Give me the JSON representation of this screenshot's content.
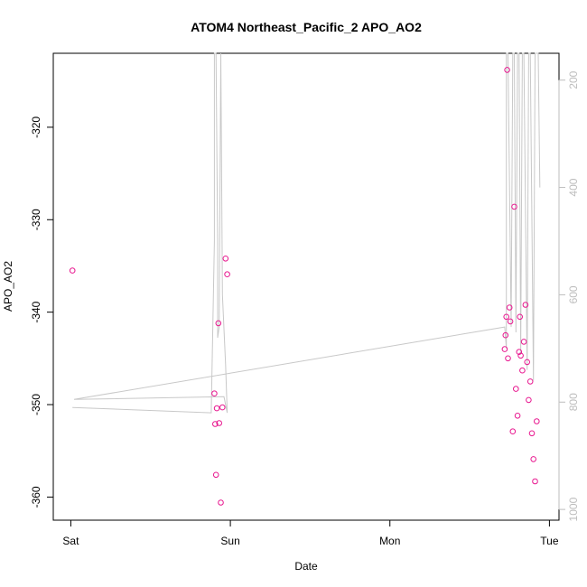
{
  "chart_data": {
    "type": "scatter",
    "title": "ATOM4 Northeast_Pacific_2 APO_AO2",
    "xlabel": "Date",
    "ylabel": "APO_AO2",
    "x_ticks": [
      "Sat",
      "Sun",
      "Mon",
      "Tue"
    ],
    "x_tick_values": [
      0,
      1,
      2,
      3
    ],
    "xlim": [
      -0.11,
      3.06
    ],
    "ylim": [
      -362.5,
      -312
    ],
    "y_ticks": [
      -320,
      -330,
      -340,
      -350,
      -360
    ],
    "y2_ticks": [
      200,
      400,
      600,
      800,
      1000
    ],
    "y2lim": [
      1020,
      150
    ],
    "grid": false,
    "colors": {
      "points": "#e8178f",
      "line": "#c8c8c8",
      "axis": "#000000",
      "right_axis": "#bdbdbd"
    },
    "series": [
      {
        "type": "points",
        "x": [
          0.01,
          0.9,
          0.905,
          0.91,
          0.915,
          0.925,
          0.93,
          0.94,
          0.95,
          0.97,
          0.98,
          2.72,
          2.725,
          2.73,
          2.735,
          2.74,
          2.75,
          2.755,
          2.77,
          2.78,
          2.79,
          2.8,
          2.81,
          2.815,
          2.82,
          2.83,
          2.84,
          2.85,
          2.86,
          2.87,
          2.88,
          2.89,
          2.9,
          2.91,
          2.92
        ],
        "y": [
          -335.5,
          -348.8,
          -352.1,
          -357.6,
          -350.4,
          -341.2,
          -352,
          -360.6,
          -350.3,
          -334.2,
          -335.9,
          -344,
          -342.5,
          -340.5,
          -313.8,
          -345,
          -339.5,
          -341,
          -352.9,
          -328.6,
          -348.3,
          -351.2,
          -344.3,
          -340.5,
          -344.7,
          -346.3,
          -343.2,
          -339.2,
          -345.4,
          -349.5,
          -347.5,
          -353.1,
          -355.9,
          -358.3,
          -351.8
        ]
      },
      {
        "type": "line",
        "x": [
          0.01,
          0.88,
          0.9,
          0.9,
          0.91,
          0.92,
          0.92,
          0.93,
          0.94,
          0.94,
          0.95,
          0.97,
          0.98,
          0.96,
          0.02,
          2.72,
          2.73,
          2.73,
          2.74,
          2.76,
          2.77,
          2.78,
          2.79,
          2.8,
          2.81,
          2.82,
          2.83,
          2.84,
          2.86,
          2.87,
          2.88,
          2.9,
          2.91,
          2.93,
          2.94
        ],
        "y2": [
          810,
          820,
          500,
          150,
          150,
          500,
          680,
          660,
          150,
          150,
          600,
          730,
          820,
          790,
          795,
          660,
          700,
          150,
          150,
          660,
          150,
          150,
          670,
          150,
          150,
          710,
          150,
          150,
          740,
          150,
          150,
          760,
          150,
          150,
          400
        ]
      }
    ]
  }
}
